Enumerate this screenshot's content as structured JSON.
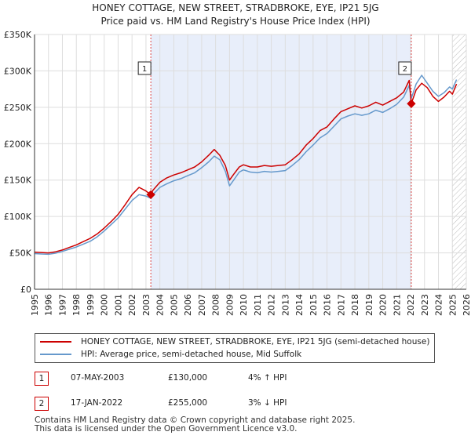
{
  "chart_data": {
    "type": "line",
    "title": "HONEY COTTAGE, NEW STREET, STRADBROKE, EYE, IP21 5JG",
    "subtitle": "Price paid vs. HM Land Registry's House Price Index (HPI)",
    "xlabel": "",
    "ylabel": "",
    "xlim": [
      1995,
      2026
    ],
    "ylim": [
      0,
      350000
    ],
    "y_ticks": [
      0,
      50000,
      100000,
      150000,
      200000,
      250000,
      300000,
      350000
    ],
    "y_tick_labels": [
      "£0",
      "£50K",
      "£100K",
      "£150K",
      "£200K",
      "£250K",
      "£300K",
      "£350K"
    ],
    "x_tick_labels": [
      "1995",
      "1996",
      "1997",
      "1998",
      "1999",
      "2000",
      "2001",
      "2002",
      "2003",
      "2004",
      "2005",
      "2006",
      "2007",
      "2008",
      "2009",
      "2010",
      "2011",
      "2012",
      "2013",
      "2014",
      "2015",
      "2016",
      "2017",
      "2018",
      "2019",
      "2020",
      "2021",
      "2022",
      "2023",
      "2024",
      "2025",
      "2026"
    ],
    "grid": true,
    "shaded_range": [
      2003.35,
      2022.05
    ],
    "hatched_from": 2025.0,
    "series": [
      {
        "name": "HONEY COTTAGE, NEW STREET, STRADBROKE, EYE, IP21 5JG (semi-detached house)",
        "color": "#cc0000",
        "x": [
          1995.0,
          1995.5,
          1996.0,
          1996.5,
          1997.0,
          1997.5,
          1998.0,
          1998.5,
          1999.0,
          1999.5,
          2000.0,
          2000.5,
          2001.0,
          2001.5,
          2002.0,
          2002.5,
          2003.0,
          2003.35,
          2003.5,
          2004.0,
          2004.5,
          2005.0,
          2005.5,
          2006.0,
          2006.5,
          2007.0,
          2007.5,
          2007.9,
          2008.3,
          2008.7,
          2009.0,
          2009.3,
          2009.7,
          2010.0,
          2010.5,
          2011.0,
          2011.5,
          2012.0,
          2012.5,
          2013.0,
          2013.5,
          2014.0,
          2014.5,
          2015.0,
          2015.5,
          2016.0,
          2016.5,
          2017.0,
          2017.5,
          2018.0,
          2018.5,
          2019.0,
          2019.5,
          2020.0,
          2020.5,
          2021.0,
          2021.5,
          2021.9,
          2022.05,
          2022.4,
          2022.8,
          2023.2,
          2023.6,
          2024.0,
          2024.4,
          2024.8,
          2025.0,
          2025.3
        ],
        "values": [
          51000,
          50500,
          50000,
          51500,
          54000,
          57500,
          61000,
          65500,
          70000,
          76000,
          84000,
          93000,
          103000,
          116000,
          130000,
          140000,
          135000,
          130000,
          136000,
          147000,
          153000,
          157000,
          160000,
          164000,
          168000,
          175000,
          184000,
          192000,
          184000,
          170000,
          150000,
          158000,
          168000,
          171000,
          168000,
          168000,
          170000,
          169000,
          170000,
          171000,
          178000,
          186000,
          198000,
          207000,
          218000,
          223000,
          234000,
          244000,
          248000,
          252000,
          249000,
          252000,
          257000,
          253000,
          258000,
          263000,
          271000,
          287000,
          255000,
          274000,
          283000,
          277000,
          265000,
          258000,
          264000,
          272000,
          268000,
          282000
        ]
      },
      {
        "name": "HPI: Average price, semi-detached house, Mid Suffolk",
        "color": "#6699cc",
        "x": [
          1995.0,
          1995.5,
          1996.0,
          1996.5,
          1997.0,
          1997.5,
          1998.0,
          1998.5,
          1999.0,
          1999.5,
          2000.0,
          2000.5,
          2001.0,
          2001.5,
          2002.0,
          2002.5,
          2003.0,
          2003.35,
          2003.5,
          2004.0,
          2004.5,
          2005.0,
          2005.5,
          2006.0,
          2006.5,
          2007.0,
          2007.5,
          2007.9,
          2008.3,
          2008.7,
          2009.0,
          2009.3,
          2009.7,
          2010.0,
          2010.5,
          2011.0,
          2011.5,
          2012.0,
          2012.5,
          2013.0,
          2013.5,
          2014.0,
          2014.5,
          2015.0,
          2015.5,
          2016.0,
          2016.5,
          2017.0,
          2017.5,
          2018.0,
          2018.5,
          2019.0,
          2019.5,
          2020.0,
          2020.5,
          2021.0,
          2021.5,
          2021.9,
          2022.05,
          2022.4,
          2022.8,
          2023.2,
          2023.6,
          2024.0,
          2024.4,
          2024.8,
          2025.0,
          2025.3
        ],
        "values": [
          49000,
          48500,
          48000,
          49500,
          52000,
          55000,
          58000,
          62000,
          66000,
          72000,
          80000,
          89000,
          98000,
          110000,
          122000,
          130000,
          128000,
          125000,
          130000,
          140000,
          145000,
          149000,
          152000,
          156000,
          160000,
          167000,
          175000,
          183000,
          178000,
          162000,
          142000,
          150000,
          161000,
          164000,
          161000,
          160000,
          162000,
          161000,
          162000,
          163000,
          170000,
          178000,
          189000,
          198000,
          208000,
          214000,
          224000,
          234000,
          238000,
          241000,
          239000,
          241000,
          246000,
          243000,
          248000,
          254000,
          264000,
          280000,
          262000,
          282000,
          294000,
          283000,
          272000,
          265000,
          270000,
          278000,
          275000,
          288000
        ]
      }
    ],
    "sales": [
      {
        "label": "1",
        "x": 2003.35,
        "value": 130000
      },
      {
        "label": "2",
        "x": 2022.05,
        "value": 255000
      }
    ],
    "legend": [
      "HONEY COTTAGE, NEW STREET, STRADBROKE, EYE, IP21 5JG (semi-detached house)",
      "HPI: Average price, semi-detached house, Mid Suffolk"
    ],
    "legend_position": "bottom"
  },
  "transactions": [
    {
      "label": "1",
      "date": "07-MAY-2003",
      "price": "£130,000",
      "hpi": "4% ↑ HPI"
    },
    {
      "label": "2",
      "date": "17-JAN-2022",
      "price": "£255,000",
      "hpi": "3% ↓ HPI"
    }
  ],
  "footer": {
    "line1": "Contains HM Land Registry data © Crown copyright and database right 2025.",
    "line2": "This data is licensed under the Open Government Licence v3.0."
  },
  "colors": {
    "property": "#cc0000",
    "hpi": "#6699cc",
    "shade": "#e8eefa",
    "grid": "#dddddd"
  }
}
